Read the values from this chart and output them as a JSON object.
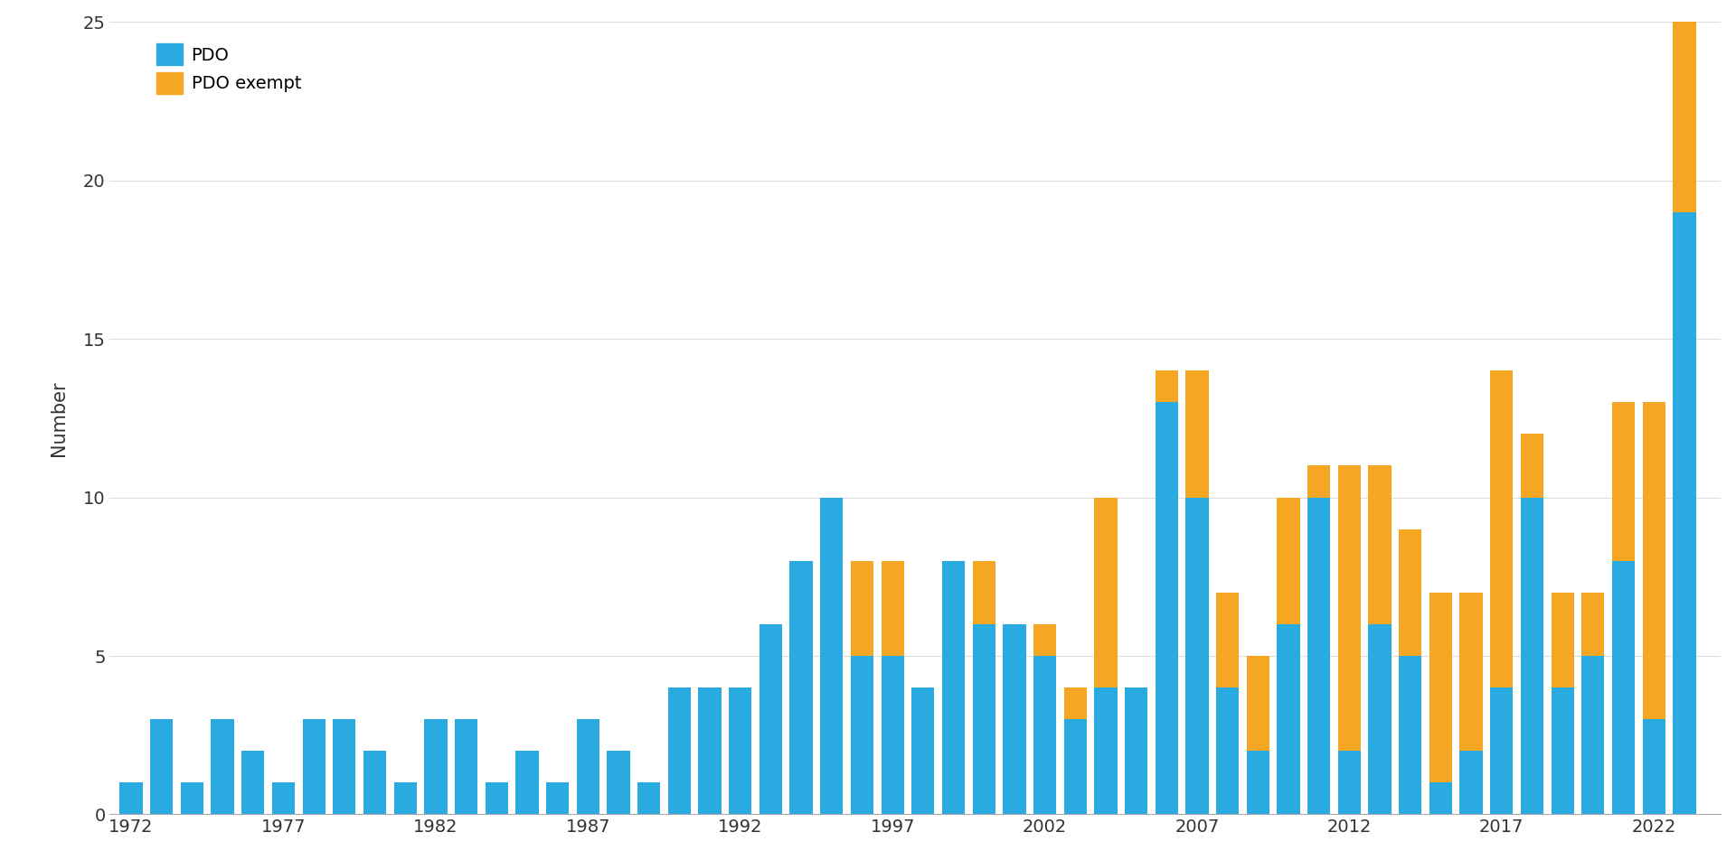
{
  "years": [
    1972,
    1973,
    1974,
    1975,
    1976,
    1977,
    1978,
    1979,
    1980,
    1981,
    1982,
    1983,
    1984,
    1985,
    1986,
    1987,
    1988,
    1989,
    1990,
    1991,
    1992,
    1993,
    1994,
    1995,
    1996,
    1997,
    1998,
    1999,
    2000,
    2001,
    2002,
    2003,
    2004,
    2005,
    2006,
    2007,
    2008,
    2009,
    2010,
    2011,
    2012,
    2013,
    2014,
    2015,
    2016,
    2017,
    2018,
    2019,
    2020,
    2021,
    2022,
    2023
  ],
  "pdo": [
    1,
    3,
    1,
    3,
    2,
    1,
    3,
    3,
    2,
    1,
    3,
    3,
    1,
    2,
    1,
    3,
    2,
    1,
    4,
    4,
    4,
    6,
    8,
    10,
    5,
    5,
    4,
    8,
    6,
    6,
    5,
    3,
    4,
    4,
    13,
    10,
    4,
    2,
    6,
    10,
    2,
    6,
    5,
    1,
    2,
    4,
    10,
    4,
    5,
    8,
    3,
    19
  ],
  "pdo_exempt": [
    0,
    0,
    0,
    0,
    0,
    0,
    0,
    0,
    0,
    0,
    0,
    0,
    0,
    0,
    0,
    0,
    0,
    0,
    0,
    0,
    0,
    0,
    0,
    0,
    3,
    3,
    0,
    0,
    2,
    0,
    1,
    1,
    6,
    0,
    1,
    4,
    3,
    3,
    4,
    1,
    9,
    5,
    4,
    6,
    5,
    10,
    2,
    3,
    2,
    5,
    10,
    6
  ],
  "pdo_color": "#29ABE2",
  "pdo_exempt_color": "#F5A623",
  "ylabel": "Number",
  "ylim": [
    0,
    25
  ],
  "yticks": [
    0,
    5,
    10,
    15,
    20,
    25
  ],
  "xtick_years": [
    1972,
    1977,
    1982,
    1987,
    1992,
    1997,
    2002,
    2007,
    2012,
    2017,
    2022
  ],
  "background_color": "#FFFFFF",
  "legend_pdo": "PDO",
  "legend_pdo_exempt": "PDO exempt",
  "bar_width": 0.75
}
